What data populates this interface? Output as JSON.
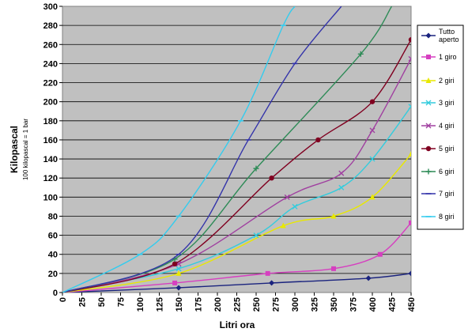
{
  "chart_data": {
    "type": "line",
    "xlabel": "Litri ora",
    "ylabel": "Kilopascal",
    "ylabel_sub": "100 kilopascal = 1 bar",
    "xlim": [
      0,
      450
    ],
    "ylim": [
      0,
      300
    ],
    "x_ticks": [
      0,
      25,
      50,
      75,
      100,
      125,
      150,
      175,
      200,
      225,
      250,
      275,
      300,
      325,
      350,
      375,
      400,
      425,
      450
    ],
    "y_ticks": [
      0,
      20,
      40,
      60,
      80,
      100,
      120,
      140,
      160,
      180,
      200,
      220,
      240,
      260,
      280,
      300
    ],
    "grid": "horizontal",
    "plot_background": "#c0c0c0",
    "legend_position": "right",
    "series": [
      {
        "name": "Tutto aperto",
        "color": "#1a237e",
        "marker": "diamond",
        "points": [
          [
            0,
            0
          ],
          [
            150,
            5
          ],
          [
            270,
            10
          ],
          [
            395,
            15
          ],
          [
            450,
            20
          ]
        ]
      },
      {
        "name": "1 giro",
        "color": "#d63fc0",
        "marker": "square",
        "points": [
          [
            0,
            0
          ],
          [
            145,
            10
          ],
          [
            265,
            20
          ],
          [
            350,
            25
          ],
          [
            410,
            40
          ],
          [
            450,
            73
          ]
        ]
      },
      {
        "name": "2 giri",
        "color": "#e8e800",
        "marker": "triangle",
        "points": [
          [
            0,
            0
          ],
          [
            150,
            20
          ],
          [
            285,
            70
          ],
          [
            350,
            80
          ],
          [
            400,
            100
          ],
          [
            450,
            145
          ]
        ]
      },
      {
        "name": "3 giri",
        "color": "#33ccdd",
        "marker": "x",
        "points": [
          [
            0,
            0
          ],
          [
            150,
            25
          ],
          [
            250,
            60
          ],
          [
            300,
            90
          ],
          [
            360,
            110
          ],
          [
            400,
            140
          ],
          [
            450,
            195
          ]
        ]
      },
      {
        "name": "4 giri",
        "color": "#a040a0",
        "marker": "x",
        "points": [
          [
            0,
            0
          ],
          [
            150,
            30
          ],
          [
            290,
            100
          ],
          [
            360,
            125
          ],
          [
            400,
            170
          ],
          [
            450,
            245
          ]
        ]
      },
      {
        "name": "5 giri",
        "color": "#800020",
        "marker": "circle",
        "points": [
          [
            0,
            0
          ],
          [
            145,
            30
          ],
          [
            270,
            120
          ],
          [
            330,
            160
          ],
          [
            400,
            200
          ],
          [
            450,
            265
          ]
        ]
      },
      {
        "name": "6 giri",
        "color": "#2e8b57",
        "marker": "plus",
        "points": [
          [
            0,
            0
          ],
          [
            145,
            35
          ],
          [
            250,
            130
          ],
          [
            385,
            250
          ],
          [
            425,
            300
          ]
        ]
      },
      {
        "name": "7 giri",
        "color": "#3333aa",
        "marker": "dash",
        "points": [
          [
            0,
            0
          ],
          [
            150,
            40
          ],
          [
            240,
            160
          ],
          [
            300,
            240
          ],
          [
            360,
            300
          ]
        ]
      },
      {
        "name": "8 giri",
        "color": "#33ccee",
        "marker": "dash",
        "points": [
          [
            0,
            0
          ],
          [
            100,
            40
          ],
          [
            150,
            80
          ],
          [
            230,
            180
          ],
          [
            285,
            280
          ],
          [
            300,
            300
          ]
        ]
      }
    ]
  }
}
